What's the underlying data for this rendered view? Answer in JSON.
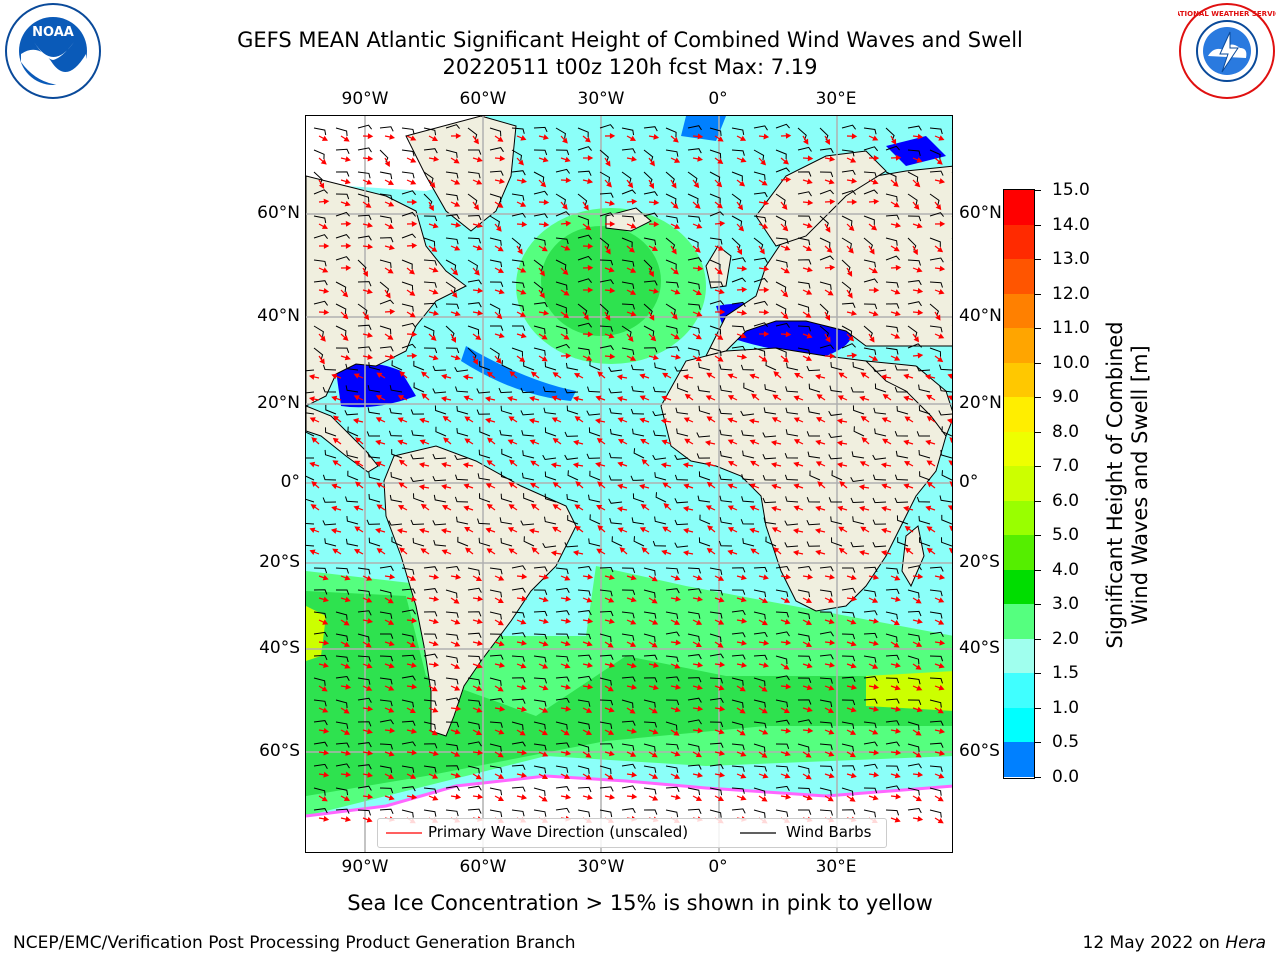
{
  "header": {
    "title_line1": "GEFS MEAN Atlantic Significant Height of Combined Wind Waves and Swell",
    "title_line2": "20220511 t00z 120h fcst   Max: 7.19"
  },
  "logos": {
    "noaa": {
      "text": "NOAA",
      "icon": "noaa-logo-icon",
      "color": "#0a4a9a"
    },
    "nws": {
      "text": "NATIONAL WEATHER SERVICE",
      "icon": "nws-logo-icon",
      "color": "#e01010"
    }
  },
  "axes": {
    "lon_ticks_top": [
      "90°W",
      "60°W",
      "30°W",
      "0°",
      "30°E"
    ],
    "lon_ticks_bottom": [
      "90°W",
      "60°W",
      "30°W",
      "0°",
      "30°E"
    ],
    "lat_ticks_left": [
      "60°N",
      "40°N",
      "20°N",
      "0°",
      "20°S",
      "40°S",
      "60°S"
    ],
    "lat_ticks_right": [
      "60°N",
      "40°N",
      "20°N",
      "0°",
      "20°S",
      "40°S",
      "60°S"
    ]
  },
  "colorbar": {
    "title_line1": "Significant Height of Combined",
    "title_line2": "Wind Waves and Swell [m]",
    "labels": [
      "15.0",
      "14.0",
      "13.0",
      "12.0",
      "11.0",
      "10.0",
      "9.0",
      "8.0",
      "7.0",
      "6.0",
      "5.0",
      "4.0",
      "3.0",
      "2.0",
      "1.5",
      "1.0",
      "0.5",
      "0.0"
    ],
    "colors": [
      "#ff0000",
      "#ff2a00",
      "#ff5500",
      "#ff8000",
      "#ffa500",
      "#ffc800",
      "#ffee00",
      "#eeff00",
      "#ccff00",
      "#99ff00",
      "#55ee00",
      "#00dd00",
      "#55ff7f",
      "#a0ffee",
      "#40ffff",
      "#00ffff",
      "#0080ff",
      "#0000ff"
    ]
  },
  "legend": {
    "wave_label": "Primary Wave Direction (unscaled)",
    "barb_label": "Wind Barbs"
  },
  "note": "Sea Ice Concentration > 15% is shown in pink to yellow",
  "footer": {
    "left": "NCEP/EMC/Verification Post Processing Product Generation Branch",
    "date": "12 May 2022 on ",
    "host": "Hera"
  },
  "colors": {
    "land": "#f0efdf",
    "ocean_light": "#80ffff",
    "ocean_high": "#00dd00",
    "sea_ice": "#ffffff",
    "arrows": "#ff0000",
    "barbs": "#000000"
  }
}
